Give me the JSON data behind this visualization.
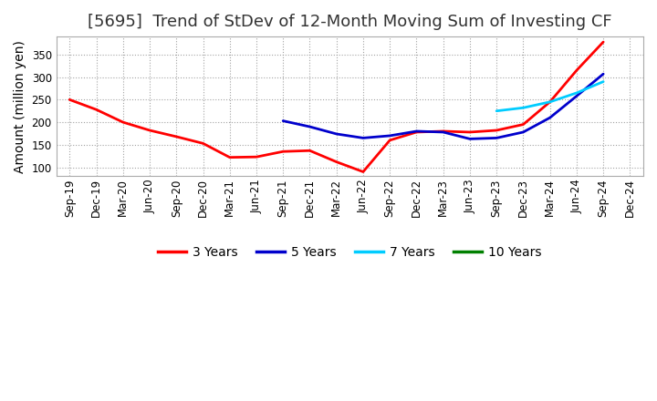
{
  "title": "[5695]  Trend of StDev of 12-Month Moving Sum of Investing CF",
  "ylabel": "Amount (million yen)",
  "background_color": "#ffffff",
  "plot_bg_color": "#ffffff",
  "grid_color": "#999999",
  "series": [
    {
      "label": "3 Years",
      "color": "#ff0000",
      "x": [
        "Sep-19",
        "Dec-19",
        "Mar-20",
        "Jun-20",
        "Sep-20",
        "Dec-20",
        "Mar-21",
        "Jun-21",
        "Sep-21",
        "Dec-21",
        "Mar-22",
        "Jun-22",
        "Sep-22",
        "Dec-22",
        "Mar-23",
        "Jun-23",
        "Sep-23",
        "Dec-23",
        "Mar-24",
        "Jun-24",
        "Sep-24"
      ],
      "y": [
        250,
        228,
        200,
        182,
        168,
        153,
        122,
        123,
        135,
        137,
        112,
        90,
        160,
        178,
        180,
        178,
        182,
        195,
        245,
        315,
        378
      ]
    },
    {
      "label": "5 Years",
      "color": "#0000cc",
      "x": [
        "Sep-21",
        "Dec-21",
        "Mar-22",
        "Jun-22",
        "Sep-22",
        "Dec-22",
        "Mar-23",
        "Jun-23",
        "Sep-23",
        "Dec-23",
        "Mar-24",
        "Jun-24",
        "Sep-24"
      ],
      "y": [
        203,
        190,
        174,
        165,
        170,
        180,
        178,
        163,
        165,
        178,
        210,
        258,
        307
      ]
    },
    {
      "label": "7 Years",
      "color": "#00ccff",
      "x": [
        "Sep-23",
        "Dec-23",
        "Mar-24",
        "Jun-24",
        "Sep-24"
      ],
      "y": [
        225,
        232,
        245,
        265,
        290
      ]
    },
    {
      "label": "10 Years",
      "color": "#008000",
      "x": [],
      "y": []
    }
  ],
  "xlim_labels": [
    "Sep-19",
    "Dec-19",
    "Mar-20",
    "Jun-20",
    "Sep-20",
    "Dec-20",
    "Mar-21",
    "Jun-21",
    "Sep-21",
    "Dec-21",
    "Mar-22",
    "Jun-22",
    "Sep-22",
    "Dec-22",
    "Mar-23",
    "Jun-23",
    "Sep-23",
    "Dec-23",
    "Mar-24",
    "Jun-24",
    "Sep-24",
    "Dec-24"
  ],
  "ylim": [
    80,
    390
  ],
  "yticks": [
    100,
    150,
    200,
    250,
    300,
    350
  ],
  "linewidth": 2.0,
  "title_fontsize": 13,
  "axis_label_fontsize": 10,
  "tick_fontsize": 8.5,
  "legend_fontsize": 10
}
